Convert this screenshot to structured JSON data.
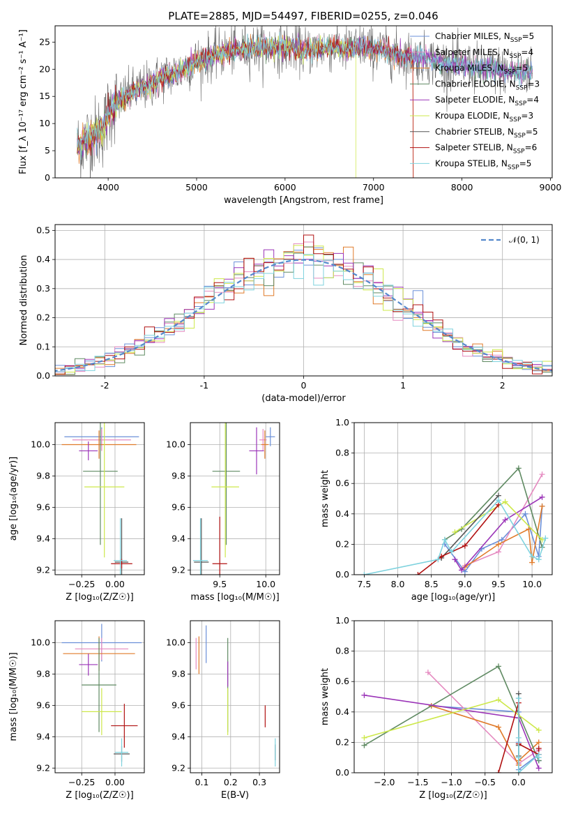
{
  "title": "PLATE=2885, MJD=54497, FIBERID=0255, z=0.046",
  "series_styles": [
    {
      "color": "#6a8fd8"
    },
    {
      "color": "#e58ac0"
    },
    {
      "color": "#e07b2a"
    },
    {
      "color": "#5f8a62"
    },
    {
      "color": "#9b34b8"
    },
    {
      "color": "#cde84a"
    },
    {
      "color": "#555555"
    },
    {
      "color": "#b01010"
    },
    {
      "color": "#7ed2de"
    }
  ],
  "chart_data": [
    {
      "id": "spectrum",
      "type": "line",
      "xlabel": "wavelength [Angstrom, rest frame]",
      "ylabel": "Flux [f_λ 10⁻¹⁷ erg cm⁻² s⁻¹ A⁻¹]",
      "xlim": [
        3400,
        9020
      ],
      "ylim": [
        0,
        28
      ],
      "xticks": [
        4000,
        5000,
        6000,
        7000,
        8000,
        9000
      ],
      "yticks": [
        0,
        5,
        10,
        15,
        20,
        25
      ],
      "grid": false,
      "legend_position": "top-right",
      "legend": [
        {
          "base": "Chabrier MILES, N",
          "sub": "SSP",
          "eq": "=5"
        },
        {
          "base": "Salpeter MILES, N",
          "sub": "SSP",
          "eq": "=4"
        },
        {
          "base": "Kroupa MILES, N",
          "sub": "SSP",
          "eq": "=5"
        },
        {
          "base": "Chabrier ELODIE, N",
          "sub": "SSP",
          "eq": "=3"
        },
        {
          "base": "Salpeter ELODIE, N",
          "sub": "SSP",
          "eq": "=4"
        },
        {
          "base": "Kroupa ELODIE, N",
          "sub": "SSP",
          "eq": "=3"
        },
        {
          "base": "Chabrier STELIB, N",
          "sub": "SSP",
          "eq": "=5"
        },
        {
          "base": "Salpeter STELIB, N",
          "sub": "SSP",
          "eq": "=6"
        },
        {
          "base": "Kroupa STELIB, N",
          "sub": "SSP",
          "eq": "=5"
        }
      ],
      "continuum": [
        [
          3650,
          5.5
        ],
        [
          3750,
          7
        ],
        [
          3850,
          8
        ],
        [
          3950,
          9
        ],
        [
          4000,
          12
        ],
        [
          4100,
          14
        ],
        [
          4200,
          15
        ],
        [
          4300,
          16
        ],
        [
          4400,
          16.5
        ],
        [
          4500,
          17.5
        ],
        [
          4600,
          18.5
        ],
        [
          4700,
          19
        ],
        [
          4800,
          19.5
        ],
        [
          4900,
          20.5
        ],
        [
          5000,
          21.5
        ],
        [
          5100,
          22
        ],
        [
          5200,
          22.5
        ],
        [
          5300,
          23
        ],
        [
          5400,
          23.5
        ],
        [
          5500,
          23.5
        ],
        [
          5600,
          24
        ],
        [
          5700,
          24
        ],
        [
          5800,
          24
        ],
        [
          5900,
          24
        ],
        [
          6000,
          24
        ],
        [
          6100,
          24
        ],
        [
          6200,
          23.5
        ],
        [
          6300,
          23.5
        ],
        [
          6400,
          24
        ],
        [
          6500,
          24
        ],
        [
          6600,
          24
        ],
        [
          6700,
          23.5
        ],
        [
          6800,
          24
        ],
        [
          6900,
          24.5
        ],
        [
          7000,
          23.5
        ],
        [
          7100,
          23.5
        ],
        [
          7200,
          23
        ],
        [
          7300,
          22.5
        ],
        [
          7400,
          22.5
        ],
        [
          7500,
          22
        ],
        [
          7600,
          22
        ],
        [
          7700,
          21.5
        ],
        [
          7800,
          21
        ],
        [
          7900,
          21
        ],
        [
          8000,
          20.5
        ],
        [
          8100,
          20.5
        ],
        [
          8200,
          20
        ],
        [
          8300,
          20
        ],
        [
          8400,
          20
        ],
        [
          8500,
          19.5
        ],
        [
          8600,
          19.5
        ],
        [
          8700,
          19.5
        ],
        [
          8800,
          19.5
        ]
      ],
      "model_end_x": [
        8800,
        8800,
        7450,
        8800,
        8800,
        6800,
        8800,
        7450,
        8800
      ]
    },
    {
      "id": "residuals",
      "type": "step-histogram",
      "xlabel": "(data-model)/error",
      "ylabel": "Normed distribution",
      "xlim": [
        -2.5,
        2.5
      ],
      "ylim": [
        0,
        0.52
      ],
      "xticks": [
        -2,
        -1,
        0,
        1,
        2
      ],
      "yticks": [
        0.0,
        0.1,
        0.2,
        0.3,
        0.4,
        0.5
      ],
      "grid": true,
      "bin_width": 0.1,
      "legend_position": "top-right",
      "normal_label": "𝒩(0, 1)",
      "normal_color": "#5588cc"
    },
    {
      "id": "age-vs-Z",
      "type": "errorbar",
      "xlabel": "Z [log₁₀(Z/Z☉)]",
      "ylabel": "age  [log₁₀(age/yr)]",
      "xlim": [
        -0.45,
        0.22
      ],
      "ylim": [
        9.17,
        10.14
      ],
      "xticks": [
        -0.25,
        0.0
      ],
      "xticklabels": [
        "−0.25",
        "0.00"
      ],
      "yticks": [
        9.2,
        9.4,
        9.6,
        9.8,
        10.0
      ],
      "grid": true,
      "points": [
        {
          "series": 0,
          "x": -0.1,
          "xerr": 0.28,
          "y": 10.05,
          "yerr": 0.06
        },
        {
          "series": 1,
          "x": -0.1,
          "xerr": 0.22,
          "y": 10.03,
          "yerr": 0.07
        },
        {
          "series": 2,
          "x": -0.12,
          "xerr": 0.28,
          "y": 10.0,
          "yerr": 0.09
        },
        {
          "series": 3,
          "x": -0.11,
          "xerr": 0.13,
          "y": 9.83,
          "yerr": 0.47
        },
        {
          "series": 4,
          "x": -0.2,
          "xerr": 0.07,
          "y": 9.96,
          "yerr": 0.06
        },
        {
          "series": 5,
          "x": -0.08,
          "xerr": 0.15,
          "y": 9.73,
          "yerr": 0.45
        },
        {
          "series": 6,
          "x": 0.05,
          "xerr": 0.05,
          "y": 9.25,
          "yerr": 0.28
        },
        {
          "series": 7,
          "x": 0.05,
          "xerr": 0.08,
          "y": 9.24,
          "yerr": 0.03
        },
        {
          "series": 8,
          "x": 0.04,
          "xerr": 0.05,
          "y": 9.26,
          "yerr": 0.27
        }
      ]
    },
    {
      "id": "age-vs-mass",
      "type": "errorbar",
      "xlabel": "mass [log₁₀(M/M☉)]",
      "ylabel": "",
      "xlim": [
        9.18,
        10.15
      ],
      "ylim": [
        9.17,
        10.14
      ],
      "xticks": [
        9.5,
        10.0
      ],
      "xticklabels": [
        "9.5",
        "10.0"
      ],
      "yticks": [
        9.2,
        9.4,
        9.6,
        9.8,
        10.0
      ],
      "grid": true,
      "points": [
        {
          "series": 0,
          "x": 10.05,
          "xerr": 0.05,
          "y": 10.05,
          "yerr": 0.06
        },
        {
          "series": 1,
          "x": 9.97,
          "xerr": 0.04,
          "y": 10.03,
          "yerr": 0.07
        },
        {
          "series": 2,
          "x": 9.99,
          "xerr": 0.04,
          "y": 10.0,
          "yerr": 0.09
        },
        {
          "series": 3,
          "x": 9.57,
          "xerr": 0.15,
          "y": 9.83,
          "yerr": 0.47
        },
        {
          "series": 4,
          "x": 9.9,
          "xerr": 0.08,
          "y": 9.96,
          "yerr": 0.15
        },
        {
          "series": 5,
          "x": 9.56,
          "xerr": 0.15,
          "y": 9.73,
          "yerr": 0.45
        },
        {
          "series": 6,
          "x": 9.3,
          "xerr": 0.08,
          "y": 9.25,
          "yerr": 0.28
        },
        {
          "series": 7,
          "x": 9.5,
          "xerr": 0.08,
          "y": 9.24,
          "yerr": 0.3
        },
        {
          "series": 8,
          "x": 9.29,
          "xerr": 0.08,
          "y": 9.26,
          "yerr": 0.27
        }
      ]
    },
    {
      "id": "mass-weight-vs-age",
      "type": "line",
      "xlabel": "age  [log₁₀(age/yr)]",
      "ylabel": "mass weight",
      "xlim": [
        7.35,
        10.3
      ],
      "ylim": [
        0.0,
        1.0
      ],
      "xticks": [
        7.5,
        8.0,
        8.5,
        9.0,
        9.5,
        10.0
      ],
      "xticklabels": [
        "7.5",
        "8.0",
        "8.5",
        "9.0",
        "9.5",
        "10.0"
      ],
      "yticks": [
        0.0,
        0.2,
        0.4,
        0.6,
        0.8,
        1.0
      ],
      "grid": true,
      "series": [
        {
          "series": 0,
          "points": [
            [
              8.7,
              0.2
            ],
            [
              9.0,
              0.02
            ],
            [
              9.25,
              0.17
            ],
            [
              9.55,
              0.23
            ],
            [
              9.9,
              0.4
            ],
            [
              10.1,
              0.12
            ],
            [
              10.15,
              0.45
            ]
          ]
        },
        {
          "series": 1,
          "points": [
            [
              9.0,
              0.06
            ],
            [
              9.5,
              0.15
            ],
            [
              10.15,
              0.66
            ]
          ]
        },
        {
          "series": 2,
          "points": [
            [
              9.0,
              0.05
            ],
            [
              9.5,
              0.2
            ],
            [
              9.95,
              0.3
            ],
            [
              10.0,
              0.08
            ],
            [
              10.15,
              0.45
            ]
          ]
        },
        {
          "series": 3,
          "points": [
            [
              8.7,
              0.23
            ],
            [
              8.95,
              0.3
            ],
            [
              9.8,
              0.7
            ],
            [
              10.15,
              0.18
            ]
          ]
        },
        {
          "series": 4,
          "points": [
            [
              8.85,
              0.1
            ],
            [
              8.95,
              0.03
            ],
            [
              9.6,
              0.36
            ],
            [
              10.15,
              0.51
            ]
          ]
        },
        {
          "series": 5,
          "points": [
            [
              8.85,
              0.28
            ],
            [
              9.6,
              0.48
            ],
            [
              10.15,
              0.23
            ]
          ]
        },
        {
          "series": 6,
          "points": [
            [
              8.65,
              0.11
            ],
            [
              9.5,
              0.52
            ]
          ]
        },
        {
          "series": 7,
          "points": [
            [
              8.3,
              0.0
            ],
            [
              8.65,
              0.12
            ],
            [
              9.0,
              0.19
            ],
            [
              9.5,
              0.46
            ]
          ]
        },
        {
          "series": 8,
          "points": [
            [
              7.5,
              0.0
            ],
            [
              8.6,
              0.1
            ],
            [
              8.7,
              0.23
            ],
            [
              8.8,
              0.15
            ],
            [
              9.5,
              0.49
            ],
            [
              10.0,
              0.12
            ],
            [
              10.1,
              0.1
            ],
            [
              10.2,
              0.24
            ]
          ]
        }
      ]
    },
    {
      "id": "mass-vs-Z",
      "type": "errorbar",
      "xlabel": "Z [log₁₀(Z/Z☉)]",
      "ylabel": "mass [log₁₀(M/M☉)]",
      "xlim": [
        -0.45,
        0.22
      ],
      "ylim": [
        9.17,
        10.14
      ],
      "xticks": [
        -0.25,
        0.0
      ],
      "xticklabels": [
        "−0.25",
        "0.00"
      ],
      "yticks": [
        9.2,
        9.4,
        9.6,
        9.8,
        10.0
      ],
      "grid": true,
      "points": [
        {
          "series": 0,
          "x": -0.1,
          "xerr": 0.3,
          "y": 10.0,
          "yerr": 0.12
        },
        {
          "series": 1,
          "x": -0.1,
          "xerr": 0.2,
          "y": 9.96,
          "yerr": 0.07
        },
        {
          "series": 2,
          "x": -0.12,
          "xerr": 0.27,
          "y": 9.93,
          "yerr": 0.11
        },
        {
          "series": 3,
          "x": -0.12,
          "xerr": 0.13,
          "y": 9.73,
          "yerr": 0.3
        },
        {
          "series": 4,
          "x": -0.2,
          "xerr": 0.07,
          "y": 9.86,
          "yerr": 0.07
        },
        {
          "series": 5,
          "x": -0.1,
          "xerr": 0.15,
          "y": 9.56,
          "yerr": 0.15
        },
        {
          "series": 6,
          "x": 0.05,
          "xerr": 0.06,
          "y": 9.29,
          "yerr": 0.05
        },
        {
          "series": 7,
          "x": 0.07,
          "xerr": 0.1,
          "y": 9.47,
          "yerr": 0.14
        },
        {
          "series": 8,
          "x": 0.05,
          "xerr": 0.05,
          "y": 9.3,
          "yerr": 0.09
        }
      ]
    },
    {
      "id": "mass-vs-ebv",
      "type": "errorbar",
      "xlabel": "E(B-V)",
      "ylabel": "",
      "xlim": [
        0.06,
        0.37
      ],
      "ylim": [
        9.17,
        10.14
      ],
      "xticks": [
        0.1,
        0.2,
        0.3
      ],
      "xticklabels": [
        "0.1",
        "0.2",
        "0.3"
      ],
      "yticks": [
        9.2,
        9.4,
        9.6,
        9.8,
        10.0
      ],
      "grid": true,
      "points": [
        {
          "series": 0,
          "x": 0.115,
          "xerr": 0,
          "y": 9.99,
          "yerr": 0.12
        },
        {
          "series": 1,
          "x": 0.08,
          "xerr": 0,
          "y": 9.93,
          "yerr": 0.1
        },
        {
          "series": 2,
          "x": 0.09,
          "xerr": 0,
          "y": 9.92,
          "yerr": 0.12
        },
        {
          "series": 3,
          "x": 0.19,
          "xerr": 0,
          "y": 9.73,
          "yerr": 0.3
        },
        {
          "series": 4,
          "x": 0.19,
          "xerr": 0,
          "y": 9.8,
          "yerr": 0.08
        },
        {
          "series": 5,
          "x": 0.19,
          "xerr": 0,
          "y": 9.56,
          "yerr": 0.15
        },
        {
          "series": 6,
          "x": 0.355,
          "xerr": 0,
          "y": 9.3,
          "yerr": 0.05
        },
        {
          "series": 7,
          "x": 0.32,
          "xerr": 0,
          "y": 9.53,
          "yerr": 0.07
        },
        {
          "series": 8,
          "x": 0.355,
          "xerr": 0,
          "y": 9.3,
          "yerr": 0.09
        }
      ]
    },
    {
      "id": "mass-weight-vs-Z",
      "type": "line",
      "xlabel": "Z [log₁₀(Z/Z☉)]",
      "ylabel": "mass weight",
      "xlim": [
        -2.45,
        0.5
      ],
      "ylim": [
        0.0,
        1.0
      ],
      "xticks": [
        -2.0,
        -1.5,
        -1.0,
        -0.5,
        0.0
      ],
      "xticklabels": [
        "−2.0",
        "−1.5",
        "−1.0",
        "−0.5",
        "0.0"
      ],
      "yticks": [
        0.0,
        0.2,
        0.4,
        0.6,
        0.8,
        1.0
      ],
      "grid": true,
      "series": [
        {
          "series": 0,
          "points": [
            [
              -1.3,
              0.44
            ],
            [
              0.0,
              0.4
            ],
            [
              0.0,
              0.2
            ],
            [
              0.0,
              0.02
            ],
            [
              0.3,
              0.12
            ],
            [
              0.3,
              0.08
            ]
          ]
        },
        {
          "series": 1,
          "points": [
            [
              -1.35,
              0.66
            ],
            [
              0.0,
              0.06
            ],
            [
              0.3,
              0.15
            ]
          ]
        },
        {
          "series": 2,
          "points": [
            [
              -1.3,
              0.44
            ],
            [
              -0.3,
              0.3
            ],
            [
              0.0,
              0.05
            ],
            [
              0.0,
              0.08
            ],
            [
              0.3,
              0.2
            ]
          ]
        },
        {
          "series": 3,
          "points": [
            [
              -2.3,
              0.18
            ],
            [
              -0.3,
              0.7
            ],
            [
              0.3,
              0.08
            ]
          ]
        },
        {
          "series": 4,
          "points": [
            [
              -2.3,
              0.51
            ],
            [
              0.0,
              0.36
            ],
            [
              0.3,
              0.03
            ]
          ]
        },
        {
          "series": 5,
          "points": [
            [
              -2.3,
              0.23
            ],
            [
              -0.3,
              0.48
            ],
            [
              0.3,
              0.28
            ]
          ]
        },
        {
          "series": 6,
          "points": [
            [
              0.0,
              0.11
            ],
            [
              0.0,
              0.52
            ],
            [
              0.0,
              0.18
            ]
          ]
        },
        {
          "series": 7,
          "points": [
            [
              -0.3,
              0.0
            ],
            [
              0.0,
              0.46
            ],
            [
              0.0,
              0.19
            ],
            [
              0.3,
              0.12
            ],
            [
              0.3,
              0.16
            ]
          ]
        },
        {
          "series": 8,
          "points": [
            [
              0.0,
              0.49
            ],
            [
              0.0,
              0.23
            ],
            [
              0.0,
              0.1
            ],
            [
              0.0,
              0.0
            ],
            [
              0.3,
              0.12
            ],
            [
              0.3,
              0.1
            ]
          ]
        }
      ]
    }
  ]
}
